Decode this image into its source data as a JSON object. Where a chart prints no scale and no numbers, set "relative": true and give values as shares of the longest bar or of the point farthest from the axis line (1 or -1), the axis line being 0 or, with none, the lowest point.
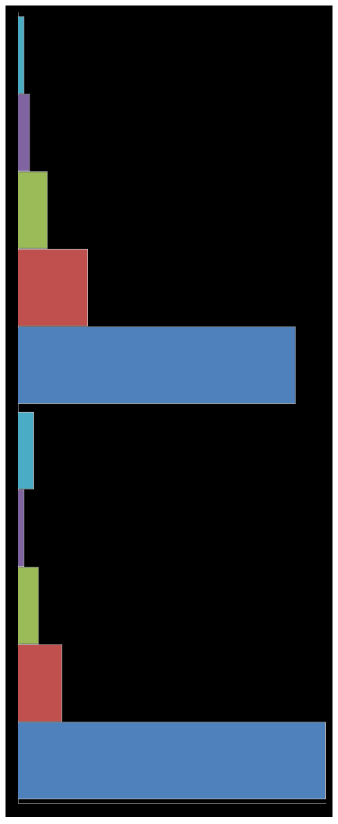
{
  "chart_data": {
    "type": "bar",
    "orientation": "horizontal",
    "relative": true,
    "legend": false,
    "categories": [
      null,
      null
    ],
    "series": [
      {
        "color": "#4bacc6",
        "values": [
          0.021,
          0.052
        ]
      },
      {
        "color": "#8064a2",
        "values": [
          0.039,
          0.021
        ]
      },
      {
        "color": "#9bbb59",
        "values": [
          0.097,
          0.068
        ]
      },
      {
        "color": "#c0504d",
        "values": [
          0.228,
          0.144
        ]
      },
      {
        "color": "#4f81bd",
        "values": [
          0.903,
          1
        ]
      }
    ]
  }
}
